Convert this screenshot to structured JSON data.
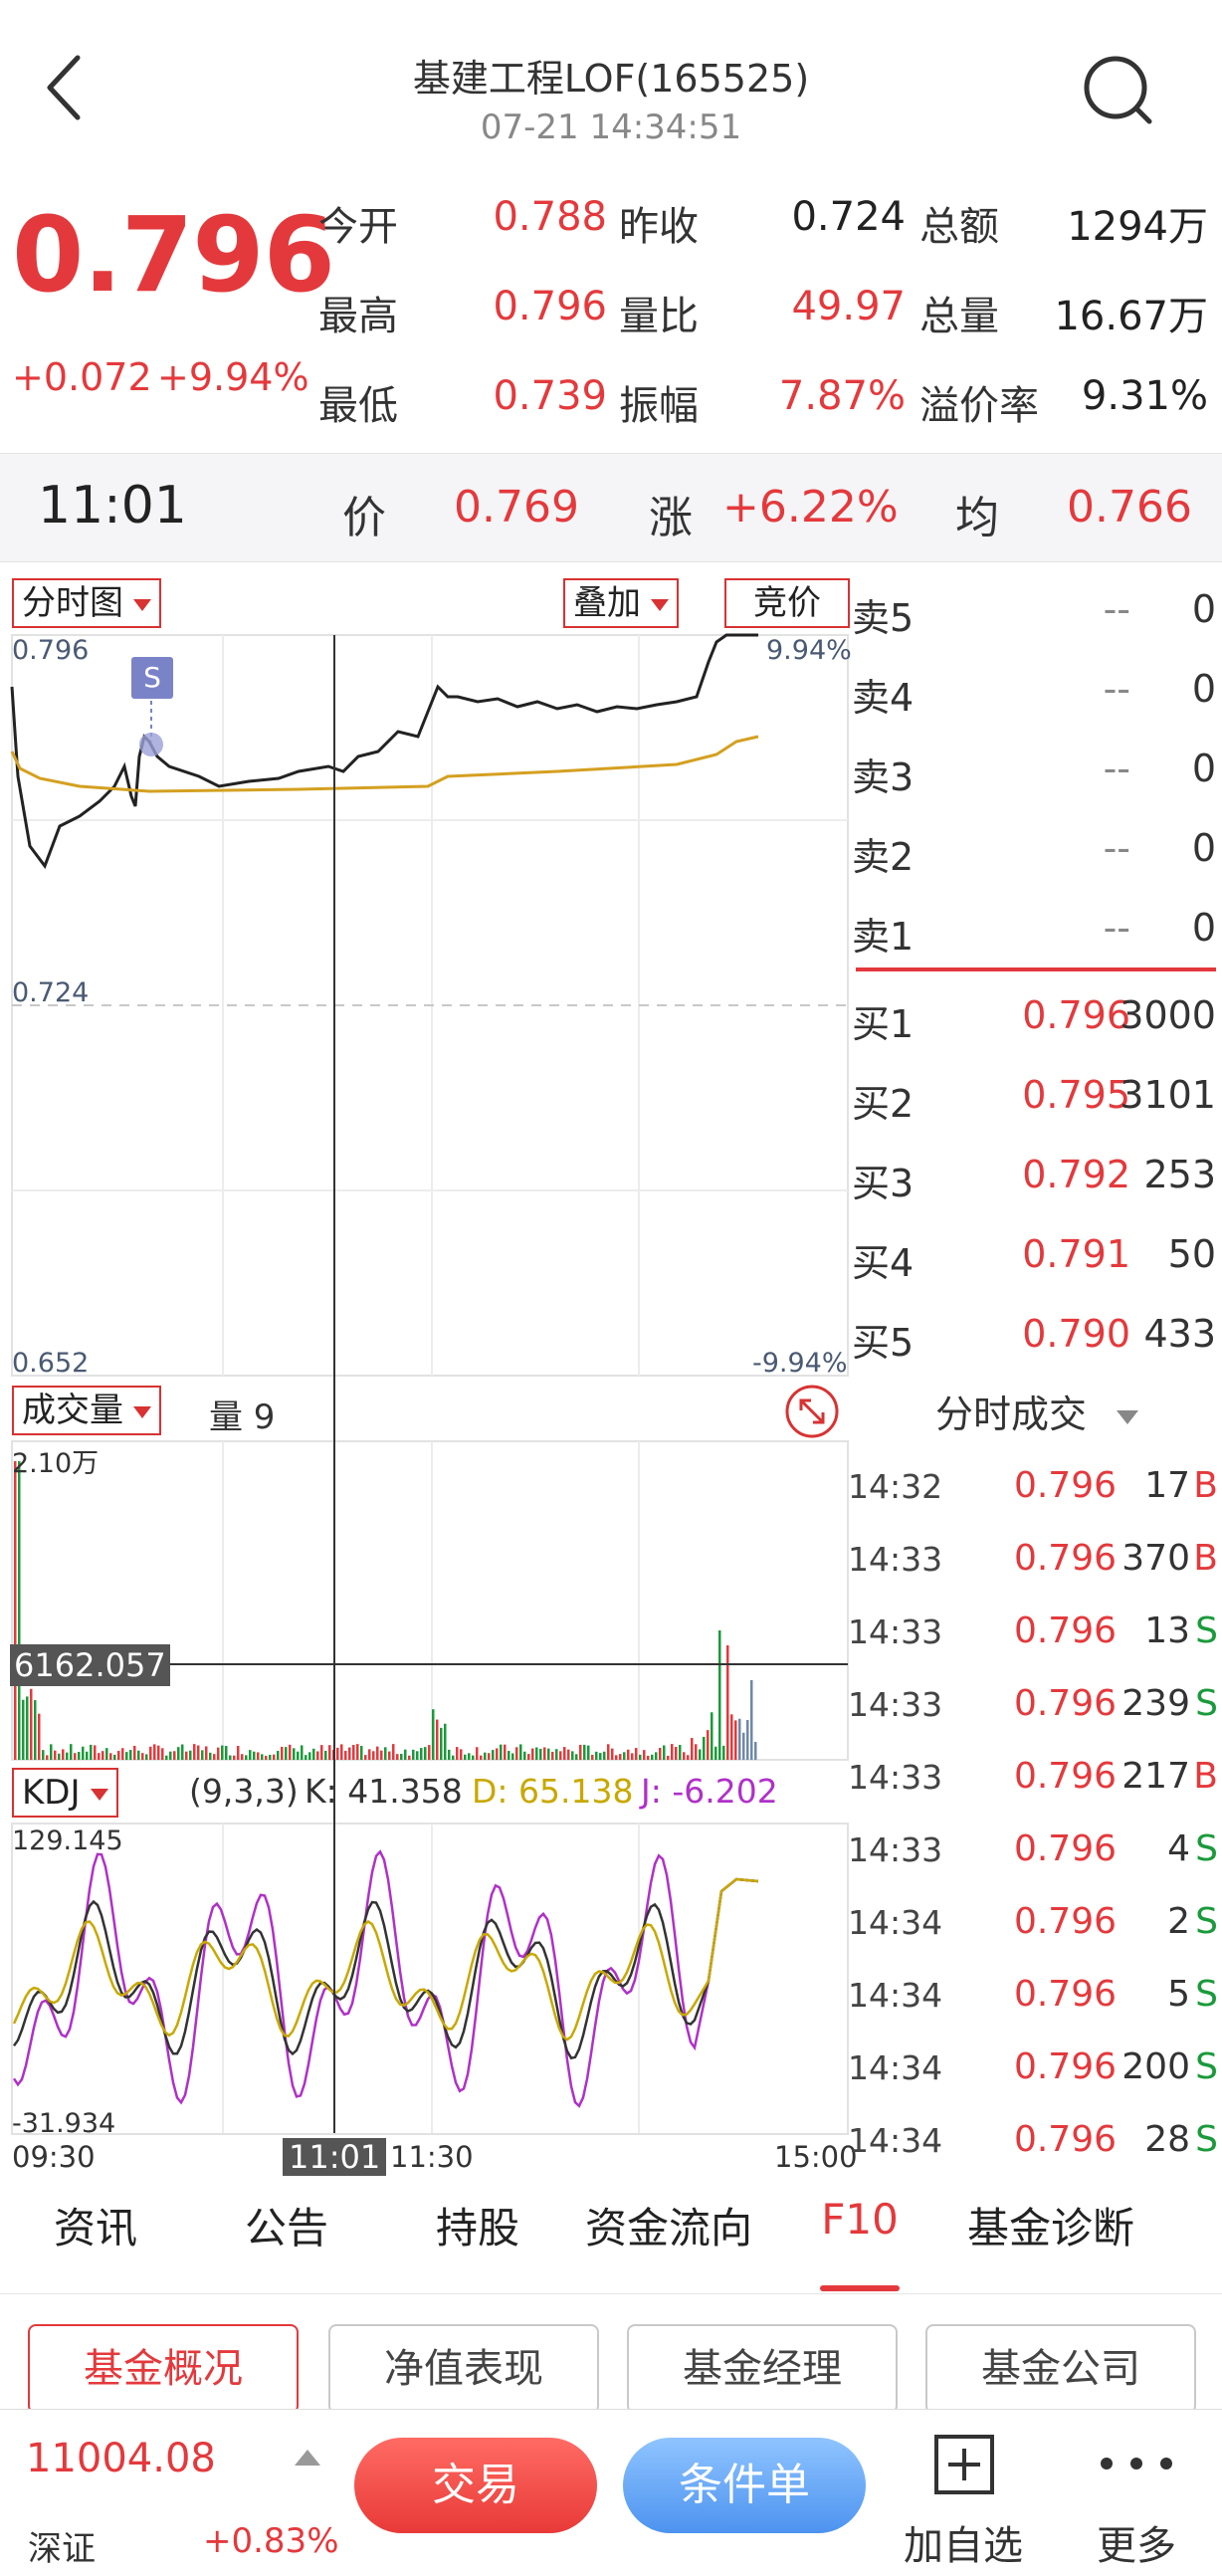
{
  "header": {
    "title": "基建工程LOF(165525)",
    "datetime": "07-21 14:34:51"
  },
  "quote": {
    "price": "0.796",
    "change": "+0.072",
    "change_pct": "+9.94%",
    "fields": [
      {
        "label": "今开",
        "value": "0.788",
        "color": "#e4393c"
      },
      {
        "label": "昨收",
        "value": "0.724",
        "color": "#222222"
      },
      {
        "label": "总额",
        "value": "1294万",
        "color": "#222222"
      },
      {
        "label": "最高",
        "value": "0.796",
        "color": "#e4393c"
      },
      {
        "label": "量比",
        "value": "49.97",
        "color": "#e4393c"
      },
      {
        "label": "总量",
        "value": "16.67万",
        "color": "#222222"
      },
      {
        "label": "最低",
        "value": "0.739",
        "color": "#e4393c"
      },
      {
        "label": "振幅",
        "value": "7.87%",
        "color": "#e4393c"
      },
      {
        "label": "溢价率",
        "value": "9.31%",
        "color": "#222222"
      }
    ]
  },
  "crosshair": {
    "time": "11:01",
    "price_label": "价",
    "price": "0.769",
    "change_label": "涨",
    "change": "+6.22%",
    "avg_label": "均",
    "avg": "0.766"
  },
  "chart_controls": {
    "mode": "分时图",
    "overlay": "叠加",
    "auction": "竞价",
    "volume_mode": "成交量",
    "volume_value": "量 9",
    "indicator": "KDJ",
    "kdj_params": "(9,3,3)",
    "kdj_k": "K: 41.358",
    "kdj_d": "D: 65.138",
    "kdj_j": "J: -6.202"
  },
  "price_axis": {
    "top": "0.796",
    "mid": "0.724",
    "bottom": "0.652",
    "top_pct": "9.94%",
    "bottom_pct": "-9.94%"
  },
  "volume_axis": {
    "top": "2.10万",
    "cursor": "6162.057"
  },
  "kdj_axis": {
    "top": "129.145",
    "bottom": "-31.934"
  },
  "time_axis": {
    "start": "09:30",
    "cursor": "11:01",
    "mid": "11:30",
    "end": "15:00"
  },
  "marker": "S",
  "orderbook": {
    "asks": [
      {
        "label": "卖5",
        "price": "--",
        "qty": "0"
      },
      {
        "label": "卖4",
        "price": "--",
        "qty": "0"
      },
      {
        "label": "卖3",
        "price": "--",
        "qty": "0"
      },
      {
        "label": "卖2",
        "price": "--",
        "qty": "0"
      },
      {
        "label": "卖1",
        "price": "--",
        "qty": "0"
      }
    ],
    "bids": [
      {
        "label": "买1",
        "price": "0.796",
        "qty": "3000"
      },
      {
        "label": "买2",
        "price": "0.795",
        "qty": "3101"
      },
      {
        "label": "买3",
        "price": "0.792",
        "qty": "253"
      },
      {
        "label": "买4",
        "price": "0.791",
        "qty": "50"
      },
      {
        "label": "买5",
        "price": "0.790",
        "qty": "433"
      }
    ]
  },
  "trades": {
    "title": "分时成交",
    "rows": [
      {
        "time": "14:32",
        "price": "0.796",
        "qty": "17",
        "dir": "B"
      },
      {
        "time": "14:33",
        "price": "0.796",
        "qty": "370",
        "dir": "B"
      },
      {
        "time": "14:33",
        "price": "0.796",
        "qty": "13",
        "dir": "S"
      },
      {
        "time": "14:33",
        "price": "0.796",
        "qty": "239",
        "dir": "S"
      },
      {
        "time": "14:33",
        "price": "0.796",
        "qty": "217",
        "dir": "B"
      },
      {
        "time": "14:33",
        "price": "0.796",
        "qty": "4",
        "dir": "S"
      },
      {
        "time": "14:34",
        "price": "0.796",
        "qty": "2",
        "dir": "S"
      },
      {
        "time": "14:34",
        "price": "0.796",
        "qty": "5",
        "dir": "S"
      },
      {
        "time": "14:34",
        "price": "0.796",
        "qty": "200",
        "dir": "S"
      },
      {
        "time": "14:34",
        "price": "0.796",
        "qty": "28",
        "dir": "S"
      }
    ]
  },
  "tabs": [
    "资讯",
    "公告",
    "持股",
    "资金流向",
    "F10",
    "基金诊断"
  ],
  "active_tab": "F10",
  "subtabs": [
    "基金概况",
    "净值表现",
    "基金经理",
    "基金公司"
  ],
  "bottom": {
    "index_value": "11004.08",
    "index_name": "深证",
    "index_change": "+0.83%",
    "trade_btn": "交易",
    "condition_btn": "条件单",
    "add_fav": "加自选",
    "more": "更多"
  },
  "colors": {
    "up": "#e4393c",
    "down": "#1a9a3a",
    "price_line": "#222222",
    "avg_line": "#d4a020",
    "kdj_k": "#333333",
    "kdj_d": "#c8a800",
    "kdj_j": "#b030c8"
  }
}
